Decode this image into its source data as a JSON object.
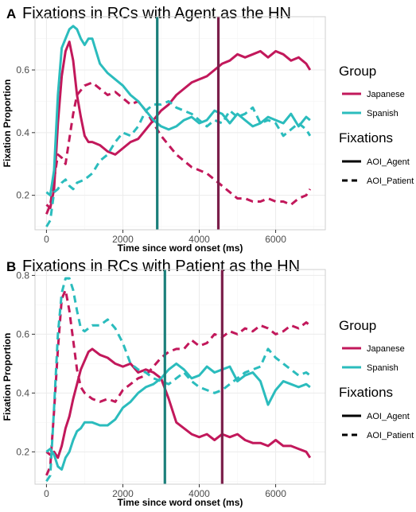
{
  "chart_data": [
    {
      "type": "line",
      "panel_label": "A",
      "title": "Fixations in RCs with Agent as the HN",
      "xlabel": "Time since word onset (ms)",
      "ylabel": "Fixation Proportion",
      "xlim": [
        -300,
        7300
      ],
      "ylim": [
        0.09,
        0.77
      ],
      "xticks": [
        0,
        2000,
        4000,
        6000
      ],
      "yticks": [
        0.2,
        0.4,
        0.6
      ],
      "grid": true,
      "legend_position": "right",
      "vlines": [
        {
          "x": 2900,
          "color": "#1a7f7a"
        },
        {
          "x": 4500,
          "color": "#7b1e4a"
        }
      ],
      "series": [
        {
          "group": "Japanese",
          "fixation": "AOI_Agent",
          "color": "#c2185b",
          "dash": "solid",
          "x": [
            0,
            100,
            200,
            300,
            400,
            500,
            600,
            700,
            800,
            900,
            1000,
            1100,
            1200,
            1400,
            1600,
            1800,
            2000,
            2200,
            2400,
            2600,
            2800,
            3000,
            3200,
            3400,
            3600,
            3800,
            4000,
            4200,
            4400,
            4600,
            4800,
            5000,
            5200,
            5400,
            5600,
            5800,
            6000,
            6200,
            6400,
            6600,
            6800,
            6900
          ],
          "y": [
            0.17,
            0.16,
            0.22,
            0.43,
            0.58,
            0.66,
            0.69,
            0.63,
            0.52,
            0.45,
            0.39,
            0.37,
            0.37,
            0.36,
            0.34,
            0.33,
            0.35,
            0.37,
            0.38,
            0.41,
            0.44,
            0.47,
            0.49,
            0.52,
            0.54,
            0.56,
            0.57,
            0.58,
            0.6,
            0.62,
            0.63,
            0.65,
            0.64,
            0.65,
            0.66,
            0.64,
            0.66,
            0.65,
            0.63,
            0.64,
            0.62,
            0.6
          ]
        },
        {
          "group": "Japanese",
          "fixation": "AOI_Patient",
          "color": "#c2185b",
          "dash": "dashed",
          "x": [
            0,
            100,
            200,
            300,
            400,
            500,
            600,
            700,
            800,
            1000,
            1200,
            1400,
            1600,
            1800,
            2000,
            2200,
            2400,
            2600,
            2800,
            3000,
            3200,
            3400,
            3600,
            3800,
            4000,
            4200,
            4400,
            4600,
            4800,
            5000,
            5200,
            5400,
            5600,
            5800,
            6000,
            6200,
            6400,
            6600,
            6800,
            6900
          ],
          "y": [
            0.14,
            0.17,
            0.25,
            0.33,
            0.32,
            0.3,
            0.38,
            0.46,
            0.52,
            0.55,
            0.56,
            0.54,
            0.52,
            0.53,
            0.51,
            0.49,
            0.5,
            0.47,
            0.43,
            0.39,
            0.36,
            0.33,
            0.31,
            0.29,
            0.28,
            0.27,
            0.25,
            0.23,
            0.21,
            0.19,
            0.19,
            0.18,
            0.18,
            0.19,
            0.18,
            0.18,
            0.17,
            0.19,
            0.2,
            0.22
          ]
        },
        {
          "group": "Spanish",
          "fixation": "AOI_Agent",
          "color": "#2bbcbd",
          "dash": "solid",
          "x": [
            0,
            100,
            200,
            300,
            400,
            500,
            600,
            700,
            800,
            900,
            1000,
            1100,
            1200,
            1300,
            1400,
            1600,
            1800,
            2000,
            2200,
            2400,
            2600,
            2800,
            3000,
            3200,
            3400,
            3600,
            3800,
            4000,
            4200,
            4400,
            4600,
            4800,
            5000,
            5200,
            5400,
            5600,
            5800,
            6000,
            6200,
            6400,
            6600,
            6800,
            6900
          ],
          "y": [
            0.21,
            0.2,
            0.28,
            0.52,
            0.67,
            0.7,
            0.73,
            0.74,
            0.73,
            0.7,
            0.68,
            0.7,
            0.7,
            0.66,
            0.62,
            0.59,
            0.57,
            0.55,
            0.52,
            0.5,
            0.47,
            0.44,
            0.42,
            0.41,
            0.42,
            0.44,
            0.45,
            0.43,
            0.44,
            0.47,
            0.46,
            0.43,
            0.46,
            0.44,
            0.42,
            0.43,
            0.45,
            0.44,
            0.43,
            0.46,
            0.42,
            0.45,
            0.44
          ]
        },
        {
          "group": "Spanish",
          "fixation": "AOI_Patient",
          "color": "#2bbcbd",
          "dash": "dashed",
          "x": [
            0,
            100,
            200,
            300,
            400,
            500,
            600,
            700,
            800,
            1000,
            1200,
            1400,
            1600,
            1800,
            2000,
            2200,
            2400,
            2600,
            2800,
            3000,
            3200,
            3400,
            3600,
            3800,
            4000,
            4200,
            4400,
            4600,
            4800,
            5000,
            5200,
            5400,
            5600,
            5800,
            6000,
            6200,
            6400,
            6600,
            6800,
            6900
          ],
          "y": [
            0.1,
            0.12,
            0.21,
            0.22,
            0.24,
            0.25,
            0.23,
            0.22,
            0.24,
            0.25,
            0.27,
            0.31,
            0.33,
            0.37,
            0.4,
            0.39,
            0.42,
            0.47,
            0.49,
            0.49,
            0.5,
            0.48,
            0.47,
            0.46,
            0.44,
            0.42,
            0.44,
            0.43,
            0.47,
            0.45,
            0.46,
            0.48,
            0.43,
            0.44,
            0.43,
            0.39,
            0.41,
            0.43,
            0.41,
            0.39
          ]
        }
      ]
    },
    {
      "type": "line",
      "panel_label": "B",
      "title": "Fixations in RCs with Patient as the HN",
      "xlabel": "Time since word onset (ms)",
      "ylabel": "Fixation Proportion",
      "xlim": [
        -300,
        7300
      ],
      "ylim": [
        0.09,
        0.82
      ],
      "xticks": [
        0,
        2000,
        4000,
        6000
      ],
      "yticks": [
        0.2,
        0.4,
        0.6,
        0.8
      ],
      "grid": true,
      "legend_position": "right",
      "vlines": [
        {
          "x": 3100,
          "color": "#1a7f7a"
        },
        {
          "x": 4600,
          "color": "#7b1e4a"
        }
      ],
      "series": [
        {
          "group": "Japanese",
          "fixation": "AOI_Agent",
          "color": "#c2185b",
          "dash": "solid",
          "x": [
            0,
            100,
            200,
            300,
            400,
            500,
            600,
            700,
            800,
            900,
            1000,
            1100,
            1200,
            1400,
            1600,
            1800,
            2000,
            2200,
            2400,
            2600,
            2800,
            3000,
            3200,
            3400,
            3600,
            3800,
            4000,
            4200,
            4400,
            4600,
            4800,
            5000,
            5200,
            5400,
            5600,
            5800,
            6000,
            6200,
            6400,
            6600,
            6800,
            6900
          ],
          "y": [
            0.2,
            0.19,
            0.2,
            0.18,
            0.22,
            0.28,
            0.32,
            0.38,
            0.43,
            0.48,
            0.51,
            0.54,
            0.55,
            0.53,
            0.52,
            0.5,
            0.49,
            0.5,
            0.47,
            0.48,
            0.47,
            0.45,
            0.38,
            0.3,
            0.28,
            0.26,
            0.25,
            0.26,
            0.24,
            0.26,
            0.25,
            0.26,
            0.24,
            0.23,
            0.23,
            0.22,
            0.24,
            0.22,
            0.22,
            0.21,
            0.2,
            0.18
          ]
        },
        {
          "group": "Japanese",
          "fixation": "AOI_Patient",
          "color": "#c2185b",
          "dash": "dashed",
          "x": [
            0,
            100,
            200,
            300,
            400,
            500,
            600,
            700,
            800,
            900,
            1000,
            1200,
            1400,
            1600,
            1800,
            2000,
            2200,
            2400,
            2600,
            2800,
            3000,
            3200,
            3400,
            3600,
            3800,
            4000,
            4200,
            4400,
            4600,
            4800,
            5000,
            5200,
            5400,
            5600,
            5800,
            6000,
            6200,
            6400,
            6600,
            6800,
            6900
          ],
          "y": [
            0.12,
            0.15,
            0.34,
            0.55,
            0.72,
            0.75,
            0.68,
            0.58,
            0.48,
            0.42,
            0.4,
            0.38,
            0.37,
            0.38,
            0.37,
            0.41,
            0.43,
            0.45,
            0.46,
            0.49,
            0.52,
            0.54,
            0.55,
            0.55,
            0.58,
            0.56,
            0.57,
            0.6,
            0.59,
            0.61,
            0.6,
            0.62,
            0.61,
            0.63,
            0.62,
            0.6,
            0.61,
            0.63,
            0.62,
            0.64,
            0.63
          ]
        },
        {
          "group": "Spanish",
          "fixation": "AOI_Agent",
          "color": "#2bbcbd",
          "dash": "solid",
          "x": [
            0,
            100,
            200,
            300,
            400,
            500,
            600,
            700,
            800,
            900,
            1000,
            1200,
            1400,
            1600,
            1800,
            2000,
            2200,
            2400,
            2600,
            2800,
            3000,
            3200,
            3400,
            3600,
            3800,
            4000,
            4200,
            4400,
            4600,
            4800,
            5000,
            5200,
            5400,
            5600,
            5800,
            6000,
            6200,
            6400,
            6600,
            6800,
            6900
          ],
          "y": [
            0.2,
            0.21,
            0.19,
            0.15,
            0.14,
            0.18,
            0.2,
            0.24,
            0.27,
            0.28,
            0.3,
            0.3,
            0.29,
            0.29,
            0.31,
            0.35,
            0.37,
            0.4,
            0.42,
            0.43,
            0.45,
            0.48,
            0.5,
            0.48,
            0.45,
            0.46,
            0.49,
            0.47,
            0.48,
            0.49,
            0.44,
            0.46,
            0.47,
            0.44,
            0.36,
            0.41,
            0.44,
            0.43,
            0.42,
            0.43,
            0.42
          ]
        },
        {
          "group": "Spanish",
          "fixation": "AOI_Patient",
          "color": "#2bbcbd",
          "dash": "dashed",
          "x": [
            0,
            100,
            200,
            300,
            400,
            500,
            600,
            700,
            800,
            900,
            1000,
            1200,
            1400,
            1600,
            1800,
            2000,
            2200,
            2400,
            2600,
            2800,
            3000,
            3200,
            3400,
            3600,
            3800,
            4000,
            4200,
            4400,
            4600,
            4800,
            5000,
            5200,
            5400,
            5600,
            5800,
            6000,
            6200,
            6400,
            6600,
            6800,
            6900
          ],
          "y": [
            0.1,
            0.12,
            0.35,
            0.6,
            0.74,
            0.79,
            0.79,
            0.75,
            0.68,
            0.62,
            0.61,
            0.63,
            0.63,
            0.65,
            0.62,
            0.57,
            0.5,
            0.48,
            0.47,
            0.45,
            0.44,
            0.43,
            0.45,
            0.47,
            0.44,
            0.42,
            0.41,
            0.4,
            0.41,
            0.43,
            0.45,
            0.47,
            0.48,
            0.49,
            0.55,
            0.52,
            0.5,
            0.48,
            0.46,
            0.47,
            0.46
          ]
        }
      ]
    }
  ],
  "legend": {
    "group_title": "Group",
    "group_items": [
      {
        "label": "Japanese",
        "color": "#c2185b"
      },
      {
        "label": "Spanish",
        "color": "#2bbcbd"
      }
    ],
    "fix_title": "Fixations",
    "fix_items": [
      {
        "label": "AOI_Agent",
        "dash": "solid"
      },
      {
        "label": "AOI_Patient",
        "dash": "dashed"
      }
    ]
  }
}
